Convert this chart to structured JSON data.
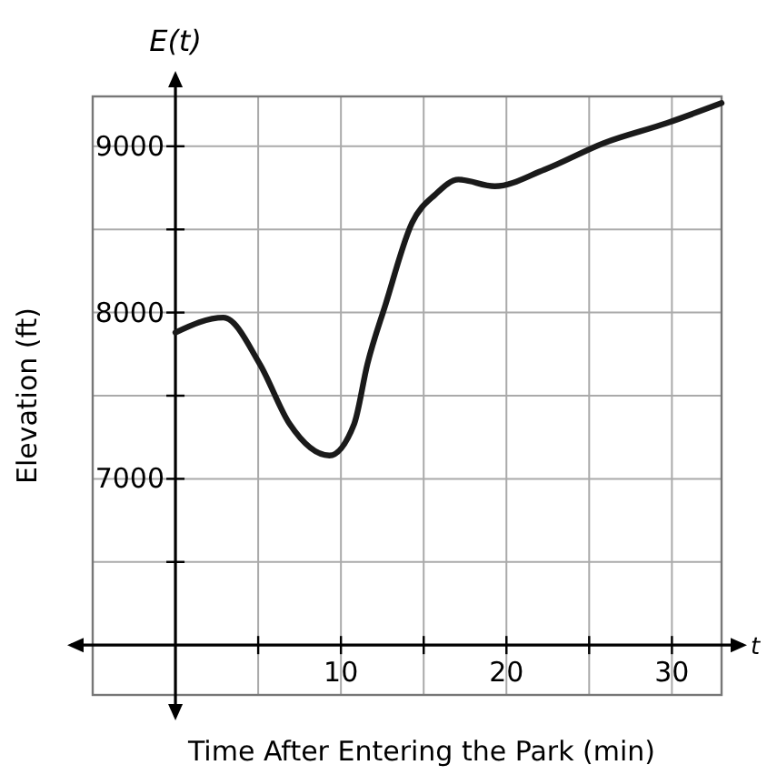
{
  "chart_data": {
    "type": "line",
    "title": "E(t)",
    "xlabel": "Time After Entering the Park (min)",
    "ylabel": "Elevation (ft)",
    "annotations": [
      "t"
    ],
    "x": [
      0,
      2.9,
      5.1,
      6.9,
      9.3,
      10.8,
      11.6,
      12.7,
      14.3,
      15.7,
      17.1,
      19.3,
      22.3,
      25.9,
      29.7,
      33
    ],
    "series": [
      {
        "color": "#1a1a1a",
        "values": [
          7880,
          7970,
          7690,
          7330,
          7140,
          7330,
          7690,
          8050,
          8540,
          8710,
          8800,
          8760,
          8860,
          9020,
          9140,
          9260
        ]
      }
    ],
    "xlim": [
      -5,
      33
    ],
    "ylim": [
      5700,
      9300
    ],
    "xticks": [
      {
        "value": 5,
        "label": null
      },
      10,
      {
        "value": 15,
        "label": null
      },
      20,
      {
        "value": 25,
        "label": null
      },
      30
    ],
    "yticks": [
      {
        "value": 6500,
        "label": null
      },
      7000,
      {
        "value": 7500,
        "label": null
      },
      8000,
      {
        "value": 8500,
        "label": null
      },
      9000
    ],
    "ref_lines": [
      {
        "axis": "y",
        "value": 6000
      }
    ],
    "grid": true,
    "marker": "none",
    "line_style": "solid"
  }
}
